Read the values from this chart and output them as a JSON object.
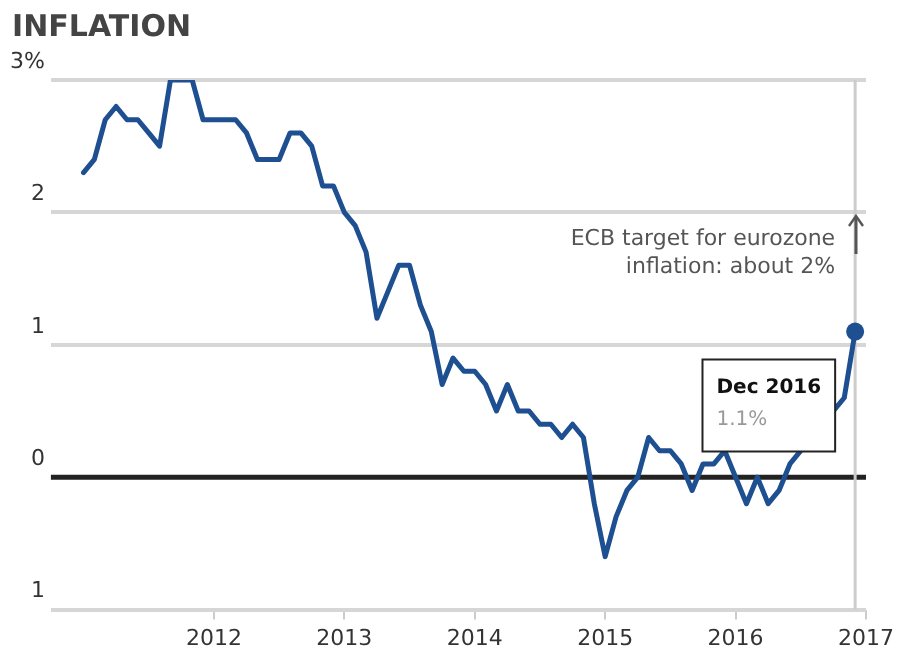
{
  "chart_data": {
    "type": "line",
    "title": "INFLATION",
    "x": [
      "2011-01",
      "2011-02",
      "2011-03",
      "2011-04",
      "2011-05",
      "2011-06",
      "2011-07",
      "2011-08",
      "2011-09",
      "2011-10",
      "2011-11",
      "2011-12",
      "2012-01",
      "2012-02",
      "2012-03",
      "2012-04",
      "2012-05",
      "2012-06",
      "2012-07",
      "2012-08",
      "2012-09",
      "2012-10",
      "2012-11",
      "2012-12",
      "2013-01",
      "2013-02",
      "2013-03",
      "2013-04",
      "2013-05",
      "2013-06",
      "2013-07",
      "2013-08",
      "2013-09",
      "2013-10",
      "2013-11",
      "2013-12",
      "2014-01",
      "2014-02",
      "2014-03",
      "2014-04",
      "2014-05",
      "2014-06",
      "2014-07",
      "2014-08",
      "2014-09",
      "2014-10",
      "2014-11",
      "2014-12",
      "2015-01",
      "2015-02",
      "2015-03",
      "2015-04",
      "2015-05",
      "2015-06",
      "2015-07",
      "2015-08",
      "2015-09",
      "2015-10",
      "2015-11",
      "2015-12",
      "2016-01",
      "2016-02",
      "2016-03",
      "2016-04",
      "2016-05",
      "2016-06",
      "2016-07",
      "2016-08",
      "2016-09",
      "2016-10",
      "2016-11",
      "2016-12"
    ],
    "series": [
      {
        "color": "#1d4f91",
        "values": [
          2.3,
          2.4,
          2.7,
          2.8,
          2.7,
          2.7,
          2.6,
          2.5,
          3.0,
          3.0,
          3.0,
          2.7,
          2.7,
          2.7,
          2.7,
          2.6,
          2.4,
          2.4,
          2.4,
          2.6,
          2.6,
          2.5,
          2.2,
          2.2,
          2.0,
          1.9,
          1.7,
          1.2,
          1.4,
          1.6,
          1.6,
          1.3,
          1.1,
          0.7,
          0.9,
          0.8,
          0.8,
          0.7,
          0.5,
          0.7,
          0.5,
          0.5,
          0.4,
          0.4,
          0.3,
          0.4,
          0.3,
          -0.2,
          -0.6,
          -0.3,
          -0.1,
          0.0,
          0.3,
          0.2,
          0.2,
          0.1,
          -0.1,
          0.1,
          0.1,
          0.2,
          null,
          -0.2,
          0.0,
          -0.2,
          -0.1,
          0.1,
          null,
          null,
          null,
          null,
          0.6,
          1.1
        ]
      }
    ],
    "xlim": [
      "2010-10",
      "2017-01"
    ],
    "xticks": [
      "2012",
      "2013",
      "2014",
      "2015",
      "2016",
      "2017"
    ],
    "ylim": [
      -1,
      3
    ],
    "yticks": [
      {
        "value": -1,
        "label": "1"
      },
      0,
      1,
      2,
      {
        "value": 3,
        "label": "3%"
      }
    ],
    "grid": "y",
    "legend": false,
    "marker": "none",
    "line_style": "solid",
    "ref_lines": [
      {
        "axis": "y",
        "value": 0,
        "color": "#222222"
      },
      {
        "axis": "x",
        "value": "2016-12",
        "color": "#cccccc"
      }
    ],
    "annotations": [
      {
        "text": "ECB target for eurozone inflation: about 2%",
        "x": "2016-12",
        "y": 2
      },
      "Dec 2016",
      "1.1%"
    ]
  }
}
